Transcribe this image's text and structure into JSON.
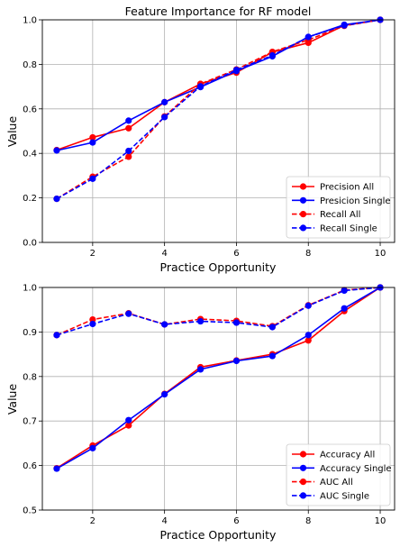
{
  "chart_data": [
    {
      "type": "line",
      "title": "Feature Importance for RF model",
      "xlabel": "Practice Opportunity",
      "ylabel": "Value",
      "xlim": [
        0.6,
        10.4
      ],
      "ylim": [
        0,
        1
      ],
      "xticks": [
        2,
        4,
        6,
        8,
        10
      ],
      "yticks": [
        0.0,
        0.2,
        0.4,
        0.6,
        0.8,
        1.0
      ],
      "ytick_labels": [
        "0.0",
        "0.2",
        "0.4",
        "0.6",
        "0.8",
        "1.0"
      ],
      "grid": true,
      "legend_position": "lower-right",
      "x": [
        1,
        2,
        3,
        4,
        5,
        6,
        7,
        8,
        9,
        10
      ],
      "series": [
        {
          "name": "Precision All",
          "color": "#ff0000",
          "linestyle": "solid",
          "marker": "circle",
          "values": [
            0.415,
            0.472,
            0.513,
            0.63,
            0.712,
            0.763,
            0.855,
            0.897,
            0.975,
            1.0
          ]
        },
        {
          "name": "Presicion Single",
          "color": "#0000ff",
          "linestyle": "solid",
          "marker": "circle",
          "values": [
            0.413,
            0.449,
            0.547,
            0.63,
            0.698,
            0.77,
            0.836,
            0.923,
            0.978,
            1.0
          ]
        },
        {
          "name": "Recall All",
          "color": "#ff0000",
          "linestyle": "dashed",
          "marker": "circle",
          "values": [
            0.196,
            0.295,
            0.385,
            0.566,
            0.712,
            0.777,
            0.856,
            0.91,
            0.973,
            1.0
          ]
        },
        {
          "name": "Recall Single",
          "color": "#0000ff",
          "linestyle": "dashed",
          "marker": "circle",
          "values": [
            0.196,
            0.286,
            0.411,
            0.563,
            0.701,
            0.775,
            0.84,
            0.923,
            0.975,
            1.0
          ]
        }
      ]
    },
    {
      "type": "line",
      "title": "",
      "xlabel": "Practice Opportunity",
      "ylabel": "Value",
      "xlim": [
        0.6,
        10.4
      ],
      "ylim": [
        0.5,
        1.0
      ],
      "xticks": [
        2,
        4,
        6,
        8,
        10
      ],
      "yticks": [
        0.5,
        0.6,
        0.7,
        0.8,
        0.9,
        1.0
      ],
      "ytick_labels": [
        "0.5",
        "0.6",
        "0.7",
        "0.8",
        "0.9",
        "1.0"
      ],
      "grid": true,
      "legend_position": "lower-right",
      "x": [
        1,
        2,
        3,
        4,
        5,
        6,
        7,
        8,
        9,
        10
      ],
      "series": [
        {
          "name": "Accuracy All",
          "color": "#ff0000",
          "linestyle": "solid",
          "marker": "circle",
          "values": [
            0.594,
            0.645,
            0.69,
            0.761,
            0.821,
            0.836,
            0.85,
            0.881,
            0.947,
            1.0
          ]
        },
        {
          "name": "Accuracy Single",
          "color": "#0000ff",
          "linestyle": "solid",
          "marker": "circle",
          "values": [
            0.593,
            0.639,
            0.702,
            0.76,
            0.816,
            0.835,
            0.846,
            0.893,
            0.953,
            1.0
          ]
        },
        {
          "name": "AUC All",
          "color": "#ff0000",
          "linestyle": "dashed",
          "marker": "circle",
          "values": [
            0.893,
            0.928,
            0.942,
            0.917,
            0.929,
            0.925,
            0.913,
            0.96,
            0.994,
            1.0
          ]
        },
        {
          "name": "AUC Single",
          "color": "#0000ff",
          "linestyle": "dashed",
          "marker": "circle",
          "values": [
            0.893,
            0.918,
            0.941,
            0.917,
            0.924,
            0.921,
            0.911,
            0.959,
            0.993,
            1.0
          ]
        }
      ]
    }
  ]
}
